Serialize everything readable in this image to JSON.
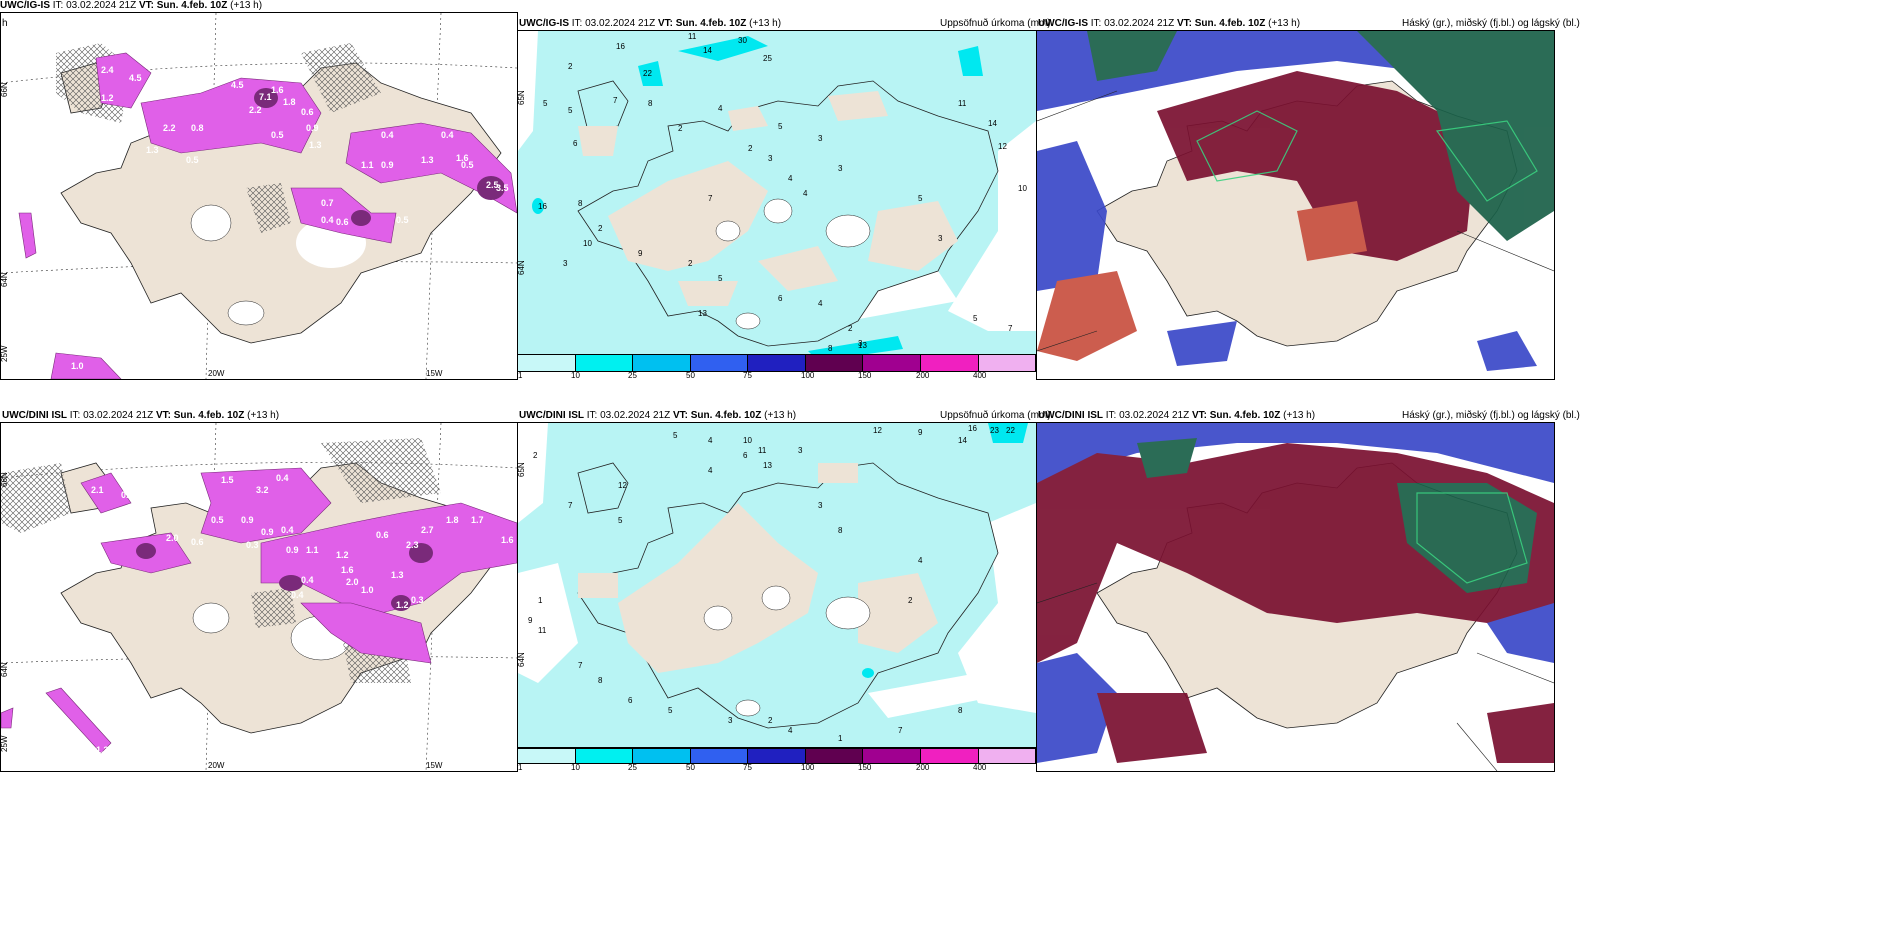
{
  "panels": [
    {
      "id": "r1c1",
      "header": {
        "model": "UWC/IG-IS",
        "it_label": "IT:",
        "it": "03.02.2024 21Z",
        "vt_label": "VT:",
        "vt": "Sun. 4.feb. 10Z",
        "lead": "(+13 h)"
      },
      "overflow_char": "h",
      "ticks": {
        "lat1": "66N",
        "lat2": "64N",
        "lon1": "20W",
        "lon2": "15W",
        "lon3": "25W"
      },
      "labels": [
        "2.4",
        "4.5",
        "1.2",
        "2.2",
        "1.6",
        "4.5",
        "7.1",
        "2.2",
        "1.8",
        "0.6",
        "0.9",
        "2.2",
        "0.8",
        "1.3",
        "0.5",
        "0.5",
        "1.3",
        "0.4",
        "1.1",
        "0.9",
        "1.3",
        "0.4",
        "0.5",
        "0.4",
        "0.7",
        "0.6",
        "1.6",
        "0.5",
        "2.5",
        "3.5",
        "1.0"
      ]
    },
    {
      "id": "r1c2",
      "header": {
        "model": "UWC/IG-IS",
        "it_label": "IT:",
        "it": "03.02.2024 21Z",
        "vt_label": "VT:",
        "vt": "Sun. 4.feb. 10Z",
        "lead": "(+13 h)"
      },
      "right_title": "Uppsöfnuð úrkoma (mm)",
      "ticks": {
        "lat1": "65N",
        "lat2": "64N"
      },
      "labels": [
        "11",
        "30",
        "14",
        "25",
        "22",
        "16",
        "2",
        "5",
        "5",
        "7",
        "8",
        "4",
        "5",
        "3",
        "3",
        "4",
        "6",
        "8",
        "16",
        "2",
        "10",
        "9",
        "3",
        "2",
        "5",
        "6",
        "4",
        "2",
        "3",
        "5",
        "8",
        "13",
        "13",
        "7",
        "10",
        "5",
        "3",
        "14",
        "12",
        "11",
        "2",
        "2",
        "3",
        "4",
        "7"
      ],
      "colorbar": [
        "1",
        "10",
        "25",
        "50",
        "75",
        "100",
        "150",
        "200",
        "400"
      ]
    },
    {
      "id": "r1c3",
      "header": {
        "model": "UWC/IG-IS",
        "it_label": "IT:",
        "it": "03.02.2024 21Z",
        "vt_label": "VT:",
        "vt": "Sun. 4.feb. 10Z",
        "lead": "(+13 h)"
      },
      "right_title": "Háský (gr.), miðský (fj.bl.) og lágský (bl.)"
    },
    {
      "id": "r2c1",
      "header": {
        "model": "UWC/DINI ISL",
        "it_label": "IT:",
        "it": "03.02.2024 21Z",
        "vt_label": "VT:",
        "vt": "Sun. 4.feb. 10Z",
        "lead": "(+13 h)"
      },
      "ticks": {
        "lat1": "66N",
        "lat2": "64N",
        "lon1": "20W",
        "lon2": "15W",
        "lon3": "25W"
      },
      "labels": [
        "2.1",
        "0.5",
        "1.5",
        "3.2",
        "0.4",
        "2.0",
        "0.6",
        "0.5",
        "0.9",
        "0.9",
        "0.4",
        "0.3",
        "0.9",
        "1.1",
        "1.2",
        "0.6",
        "2.3",
        "2.7",
        "1.8",
        "1.7",
        "1.6",
        "1.6",
        "2.0",
        "1.0",
        "1.3",
        "0.4",
        "0.4",
        "1.2",
        "0.3",
        "1.3"
      ]
    },
    {
      "id": "r2c2",
      "header": {
        "model": "UWC/DINI ISL",
        "it_label": "IT:",
        "it": "03.02.2024 21Z",
        "vt_label": "VT:",
        "vt": "Sun. 4.feb. 10Z",
        "lead": "(+13 h)"
      },
      "right_title": "Uppsöfnuð úrkoma (mm)",
      "ticks": {
        "lat1": "65N",
        "lat2": "64N"
      },
      "labels": [
        "12",
        "16",
        "23",
        "22",
        "14",
        "9",
        "10",
        "11",
        "13",
        "2",
        "5",
        "4",
        "6",
        "3",
        "12",
        "7",
        "5",
        "4",
        "3",
        "8",
        "4",
        "2",
        "1",
        "9",
        "11",
        "7",
        "8",
        "6",
        "5",
        "3",
        "2",
        "4",
        "1",
        "7",
        "8"
      ],
      "colorbar": [
        "1",
        "10",
        "25",
        "50",
        "75",
        "100",
        "150",
        "200",
        "400"
      ]
    },
    {
      "id": "r2c3",
      "header": {
        "model": "UWC/DINI ISL",
        "it_label": "IT:",
        "it": "03.02.2024 21Z",
        "vt_label": "VT:",
        "vt": "Sun. 4.feb. 10Z",
        "lead": "(+13 h)"
      },
      "right_title": "Háský (gr.), miðský (fj.bl.) og lágský (bl.)"
    }
  ],
  "colors": {
    "land": "#ede3d6",
    "precip_light": "#b8f4f4",
    "precip_cyan": "#00e8f0",
    "snow_pink": "#e060e8",
    "snow_dark": "#7a2a7a",
    "cloud_high": "#1a6048",
    "cloud_mid": "#7a1030",
    "cloud_low": "#3a48c8"
  },
  "colorbar_colors": [
    "#c8f8f8",
    "#00f0f0",
    "#00c0f0",
    "#3060f0",
    "#2020c0",
    "#600050",
    "#a00090",
    "#f020c0",
    "#f0b0f0"
  ]
}
